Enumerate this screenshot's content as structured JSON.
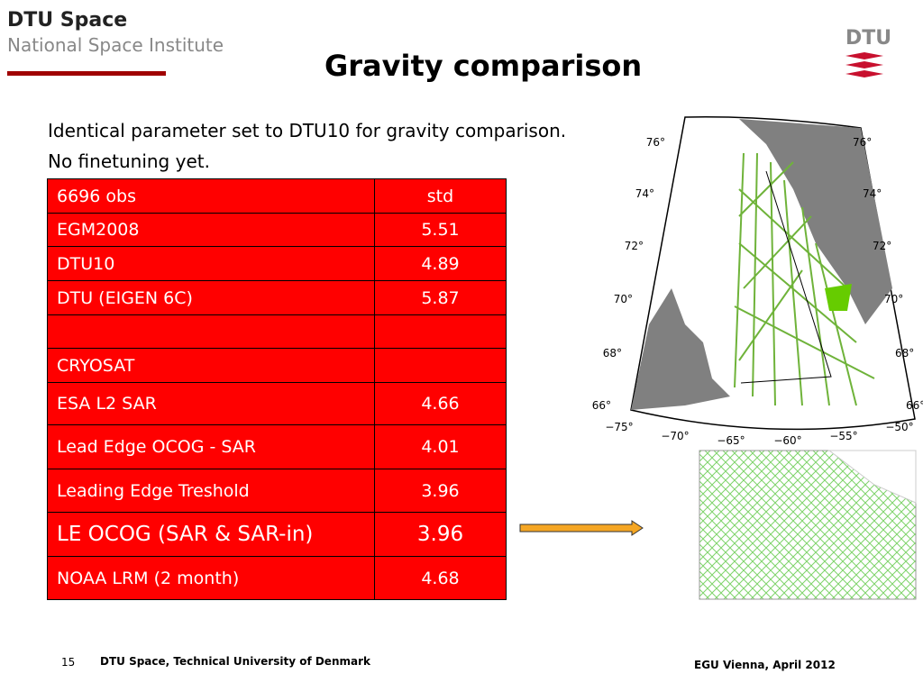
{
  "header": {
    "org": "DTU Space",
    "institute": "National Space Institute",
    "logo": "DTU",
    "title": "Gravity comparison"
  },
  "intro": [
    "Identical parameter set to DTU10 for gravity comparison.",
    "No finetuning yet."
  ],
  "table": {
    "rows": [
      [
        "6696 obs",
        "std"
      ],
      [
        "EGM2008",
        "5.51"
      ],
      [
        "DTU10",
        "4.89"
      ],
      [
        "DTU (EIGEN 6C)",
        "5.87"
      ],
      [
        null,
        null
      ],
      [
        "CRYOSAT",
        null
      ],
      [
        "ESA L2 SAR",
        "4.66"
      ],
      [
        "Lead Edge OCOG - SAR",
        "4.01"
      ],
      [
        "Leading Edge Treshold",
        "3.96"
      ],
      [
        "LE OCOG (SAR & SAR-in)",
        "3.96"
      ],
      [
        "NOAA  LRM (2 month)",
        "4.68"
      ]
    ]
  },
  "map": {
    "lat_left": [
      "76°",
      "74°",
      "72°",
      "70°",
      "68°",
      "66°"
    ],
    "lat_right": [
      "76°",
      "74°",
      "72°",
      "70°",
      "68°",
      "66°"
    ],
    "lon": [
      "−75°",
      "−70°",
      "−65°",
      "−60°",
      "−55°",
      "−50°"
    ]
  },
  "footer": {
    "page": "15",
    "affiliation": "DTU Space, Technical University of Denmark",
    "event": "EGU  Vienna, April 2012"
  }
}
